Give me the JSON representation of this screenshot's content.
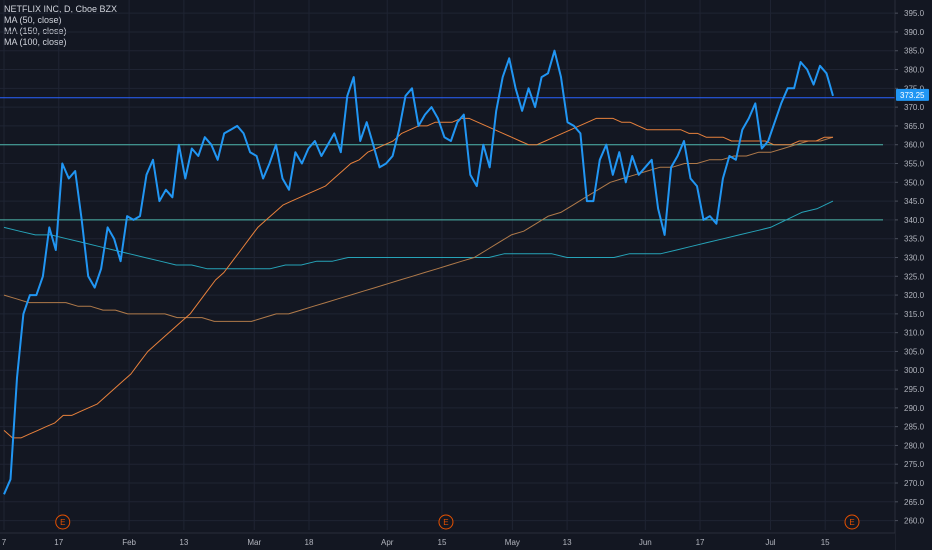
{
  "legend": {
    "title": "NETFLIX INC, D, Cboe BZX",
    "studies": [
      "MA (50, close)",
      "MA (150, close)",
      "MA (100, close)"
    ]
  },
  "chart_data": {
    "type": "line",
    "title": "NETFLIX INC, D, Cboe BZX",
    "y_ticks": [
      260,
      265,
      270,
      275,
      280,
      285,
      290,
      295,
      300,
      305,
      310,
      315,
      320,
      325,
      330,
      335,
      340,
      345,
      350,
      355,
      360,
      365,
      370,
      375,
      380,
      385,
      390,
      395
    ],
    "ylim": [
      257.5,
      398.5
    ],
    "x_tick_labels": [
      "7",
      "17",
      "Feb",
      "13",
      "Mar",
      "18",
      "Apr",
      "15",
      "May",
      "13",
      "Jun",
      "17",
      "Jul",
      "15"
    ],
    "x_tick_index": [
      0,
      7,
      16,
      23,
      32,
      39,
      49,
      56,
      65,
      72,
      82,
      89,
      98,
      105
    ],
    "x_count": 107,
    "current_price_label": "373.25",
    "horizontal_levels": [
      {
        "value": 360,
        "color": "#4db6ac"
      },
      {
        "value": 340,
        "color": "#4db6ac"
      },
      {
        "value": 372.5,
        "color": "#2962ff"
      }
    ],
    "earnings_markers": [
      {
        "label": "E",
        "index": 7
      },
      {
        "label": "E",
        "index": 56
      },
      {
        "label": "E",
        "index": 106
      }
    ],
    "series": [
      {
        "color": "#2196f3",
        "values": [
          267,
          271,
          298,
          315,
          320,
          320,
          325,
          338,
          332,
          355,
          351,
          353,
          340,
          325,
          322,
          327,
          338,
          335,
          329,
          341,
          340,
          341,
          352,
          356,
          345,
          348,
          346,
          360,
          351,
          359,
          357,
          362,
          360,
          356,
          363,
          364,
          365,
          363,
          358,
          357,
          351,
          355,
          360,
          351,
          348,
          358,
          355,
          359,
          361,
          357,
          360,
          363,
          358,
          373,
          378,
          361,
          366,
          360,
          354,
          355,
          357,
          364,
          373,
          375,
          365,
          368,
          370,
          367,
          362,
          361,
          366,
          368,
          352,
          349,
          360,
          354,
          369,
          378,
          383,
          375,
          369,
          375,
          370,
          378,
          379,
          385,
          378,
          366,
          365,
          363,
          345,
          345,
          356,
          360,
          352,
          358,
          350,
          357,
          352,
          354,
          356,
          343,
          336,
          354,
          357,
          361,
          351,
          349,
          340,
          341,
          339,
          351,
          357,
          356,
          364,
          367,
          371,
          359,
          361,
          366,
          371,
          375,
          375,
          382,
          380,
          376,
          381,
          379,
          373
        ]
      },
      {
        "color": "#e8813c",
        "values": [
          284,
          282,
          282,
          283,
          284,
          285,
          286,
          288,
          288,
          289,
          290,
          291,
          293,
          295,
          297,
          299,
          302,
          305,
          307,
          309,
          311,
          313,
          315,
          318,
          321,
          324,
          326,
          329,
          332,
          335,
          338,
          340,
          342,
          344,
          345,
          346,
          347,
          348,
          349,
          351,
          353,
          355,
          356,
          358,
          359,
          360,
          361,
          363,
          364,
          365,
          365,
          366,
          366,
          366,
          367,
          367,
          366,
          365,
          364,
          363,
          362,
          361,
          360,
          360,
          361,
          362,
          363,
          364,
          365,
          366,
          367,
          367,
          367,
          366,
          366,
          365,
          364,
          364,
          364,
          364,
          364,
          363,
          363,
          362,
          362,
          362,
          361,
          361,
          361,
          361,
          361,
          360,
          360,
          360,
          361,
          361,
          361,
          362,
          362
        ]
      },
      {
        "color": "#b07a4a",
        "values": [
          320,
          319,
          318,
          318,
          318,
          318,
          317,
          317,
          316,
          316,
          315,
          315,
          315,
          315,
          314,
          314,
          314,
          313,
          313,
          313,
          313,
          314,
          315,
          315,
          316,
          317,
          318,
          319,
          320,
          321,
          322,
          323,
          324,
          325,
          326,
          327,
          328,
          329,
          330,
          332,
          334,
          336,
          337,
          339,
          341,
          342,
          344,
          346,
          348,
          350,
          351,
          352,
          353,
          354,
          354,
          355,
          355,
          356,
          356,
          357,
          357,
          358,
          358,
          359,
          360,
          361,
          361,
          362
        ]
      },
      {
        "color": "#26a3b8",
        "values": [
          338,
          337,
          336,
          336,
          335,
          334,
          333,
          332,
          331,
          330,
          329,
          328,
          328,
          327,
          327,
          327,
          327,
          327,
          328,
          328,
          329,
          329,
          330,
          330,
          330,
          330,
          330,
          330,
          330,
          330,
          330,
          330,
          331,
          331,
          331,
          331,
          330,
          330,
          330,
          330,
          331,
          331,
          331,
          332,
          333,
          334,
          335,
          336,
          337,
          338,
          340,
          342,
          343,
          345
        ]
      }
    ]
  }
}
